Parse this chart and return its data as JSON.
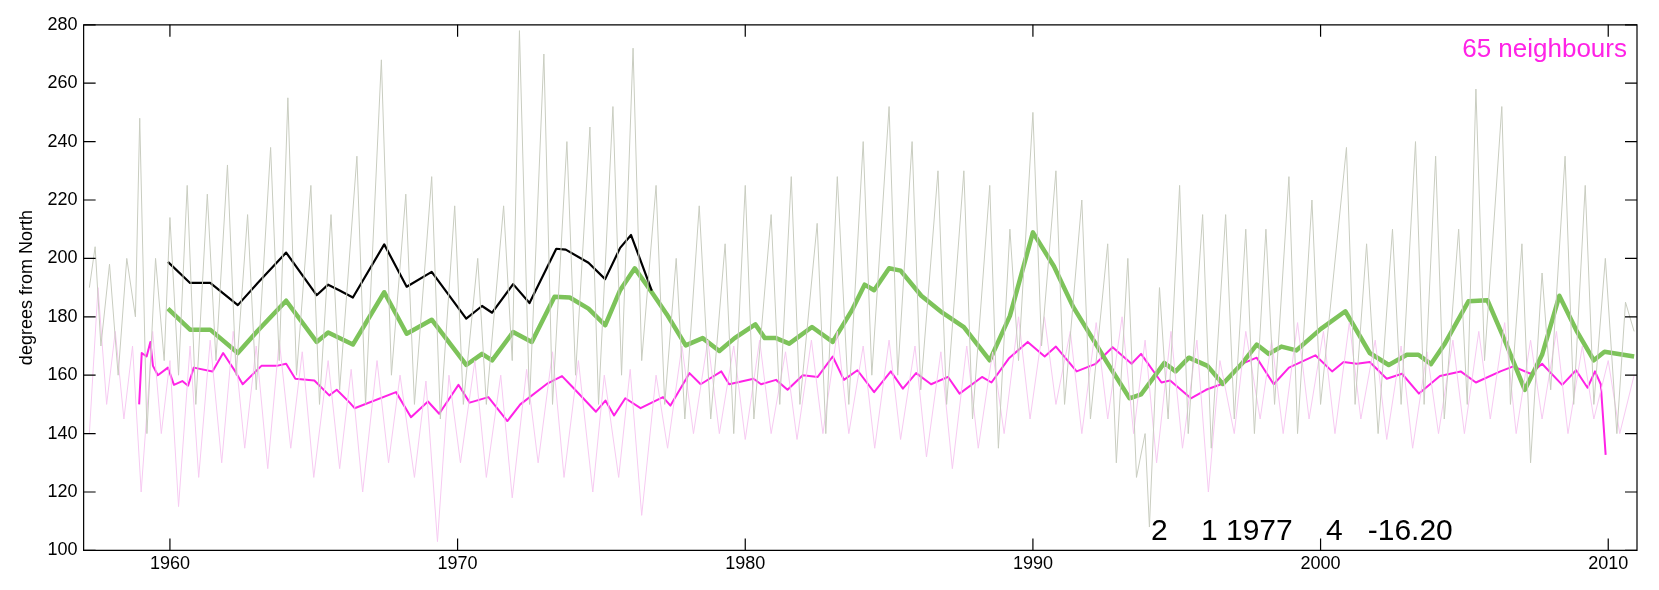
{
  "chart_data": {
    "type": "line",
    "ylabel": "degrees from North",
    "xlim": [
      1957,
      2011
    ],
    "xticks": [
      1960,
      1970,
      1980,
      1990,
      2000,
      2010
    ],
    "ylim": [
      100,
      280
    ],
    "yticks": [
      100,
      120,
      140,
      160,
      180,
      200,
      220,
      240,
      260,
      280
    ],
    "grid": false,
    "legend": false,
    "marker": "none",
    "line_style": "solid",
    "annotations": [
      "65 neighbours",
      "2    1 1977    4   -16.20"
    ],
    "series": [
      {
        "color": "#c9cdc0",
        "x": [
          1957.2,
          1957.4,
          1957.6,
          1957.9,
          1958.2,
          1958.5,
          1958.8,
          1958.95,
          1959.2,
          1959.5,
          1959.8,
          1960.0,
          1960.3,
          1960.6,
          1960.9,
          1961.3,
          1961.6,
          1962.0,
          1962.3,
          1962.7,
          1963.0,
          1963.5,
          1963.8,
          1964.1,
          1964.4,
          1964.9,
          1965.2,
          1965.6,
          1965.9,
          1966.5,
          1966.8,
          1967.35,
          1967.7,
          1968.2,
          1968.5,
          1969.1,
          1969.4,
          1969.9,
          1970.2,
          1970.7,
          1971.0,
          1971.6,
          1971.9,
          1972.15,
          1972.5,
          1973.0,
          1973.3,
          1973.8,
          1974.1,
          1974.6,
          1974.9,
          1975.4,
          1975.7,
          1976.1,
          1976.4,
          1976.9,
          1977.2,
          1977.6,
          1977.9,
          1978.4,
          1978.8,
          1979.3,
          1979.6,
          1980.0,
          1980.3,
          1980.9,
          1981.2,
          1981.6,
          1981.9,
          1982.5,
          1982.8,
          1983.2,
          1983.6,
          1984.1,
          1984.4,
          1985.0,
          1985.3,
          1985.8,
          1986.1,
          1986.7,
          1987.0,
          1987.6,
          1987.9,
          1988.5,
          1988.8,
          1989.2,
          1989.5,
          1990.0,
          1990.3,
          1990.8,
          1991.1,
          1991.7,
          1992.0,
          1992.6,
          1992.9,
          1993.3,
          1993.6,
          1993.9,
          1994.05,
          1994.4,
          1994.7,
          1995.1,
          1995.4,
          1995.9,
          1996.2,
          1996.7,
          1997.0,
          1997.4,
          1997.7,
          1998.1,
          1998.4,
          1998.9,
          1999.2,
          1999.7,
          2000.0,
          2000.9,
          2001.2,
          2001.6,
          2002.0,
          2002.5,
          2002.8,
          2003.3,
          2003.6,
          2004.0,
          2004.3,
          2004.8,
          2005.1,
          2005.4,
          2005.7,
          2006.3,
          2006.6,
          2007.0,
          2007.3,
          2007.7,
          2008.0,
          2008.5,
          2008.8,
          2009.2,
          2009.5,
          2009.9,
          2010.3,
          2010.6,
          2010.9
        ],
        "values": [
          190,
          204,
          170,
          198,
          160,
          200,
          180,
          248,
          140,
          200,
          165,
          214,
          160,
          225,
          150,
          222,
          165,
          232,
          160,
          215,
          155,
          238,
          165,
          255,
          160,
          225,
          150,
          215,
          155,
          235,
          150,
          268,
          160,
          222,
          150,
          228,
          145,
          218,
          150,
          200,
          150,
          218,
          165,
          278,
          150,
          270,
          150,
          240,
          160,
          245,
          150,
          252,
          160,
          272,
          165,
          225,
          150,
          200,
          145,
          218,
          145,
          205,
          140,
          225,
          145,
          215,
          150,
          228,
          150,
          212,
          140,
          228,
          150,
          240,
          160,
          252,
          160,
          240,
          155,
          230,
          150,
          230,
          145,
          225,
          135,
          210,
          165,
          250,
          170,
          230,
          150,
          220,
          145,
          205,
          130,
          200,
          125,
          140,
          108,
          190,
          145,
          225,
          140,
          215,
          135,
          215,
          145,
          210,
          140,
          210,
          150,
          228,
          140,
          220,
          150,
          238,
          150,
          205,
          140,
          210,
          150,
          240,
          150,
          235,
          145,
          210,
          150,
          258,
          165,
          252,
          150,
          205,
          130,
          195,
          155,
          235,
          150,
          225,
          150,
          200,
          140,
          185,
          175
        ]
      },
      {
        "color": "#f7caf2",
        "x": [
          1957.2,
          1957.5,
          1957.8,
          1958.1,
          1958.4,
          1958.7,
          1959.0,
          1959.4,
          1959.7,
          1960.0,
          1960.3,
          1960.7,
          1961.0,
          1961.4,
          1961.8,
          1962.2,
          1962.6,
          1963.0,
          1963.4,
          1963.8,
          1964.2,
          1964.6,
          1965.0,
          1965.5,
          1965.9,
          1966.3,
          1966.7,
          1967.2,
          1967.6,
          1968.0,
          1968.5,
          1968.9,
          1969.3,
          1969.7,
          1970.1,
          1970.6,
          1971.0,
          1971.5,
          1971.9,
          1972.4,
          1972.8,
          1973.3,
          1973.7,
          1974.2,
          1974.7,
          1975.1,
          1975.6,
          1976.0,
          1976.4,
          1976.9,
          1977.3,
          1977.8,
          1978.2,
          1978.7,
          1979.1,
          1979.6,
          1980.0,
          1980.5,
          1980.9,
          1981.4,
          1981.8,
          1982.3,
          1982.7,
          1983.2,
          1983.6,
          1984.1,
          1984.5,
          1985.0,
          1985.4,
          1985.9,
          1986.3,
          1986.8,
          1987.2,
          1987.7,
          1988.1,
          1988.6,
          1989.0,
          1989.5,
          1989.9,
          1990.4,
          1990.8,
          1991.3,
          1991.7,
          1992.2,
          1992.6,
          1993.1,
          1993.5,
          1993.9,
          1994.3,
          1994.8,
          1995.2,
          1995.7,
          1996.1,
          1996.5,
          1997.0,
          1997.4,
          1997.9,
          1998.3,
          1998.7,
          1999.2,
          1999.6,
          2000.1,
          2000.5,
          2001.0,
          2001.4,
          2001.9,
          2002.3,
          2002.8,
          2003.2,
          2003.7,
          2004.1,
          2004.6,
          2005.0,
          2005.5,
          2005.9,
          2006.4,
          2006.8,
          2007.3,
          2007.7,
          2008.2,
          2008.6,
          2009.1,
          2009.5,
          2010.0,
          2010.4,
          2010.9
        ],
        "values": [
          140,
          190,
          150,
          175,
          145,
          170,
          120,
          175,
          140,
          165,
          115,
          170,
          125,
          172,
          130,
          175,
          135,
          170,
          128,
          172,
          135,
          168,
          125,
          165,
          128,
          162,
          120,
          165,
          130,
          160,
          125,
          158,
          103,
          160,
          130,
          165,
          125,
          160,
          118,
          162,
          130,
          168,
          125,
          165,
          120,
          160,
          125,
          162,
          112,
          160,
          135,
          170,
          140,
          172,
          140,
          170,
          138,
          172,
          140,
          168,
          138,
          172,
          140,
          175,
          140,
          170,
          135,
          172,
          138,
          170,
          132,
          168,
          128,
          170,
          135,
          168,
          140,
          180,
          145,
          180,
          150,
          175,
          140,
          178,
          145,
          180,
          140,
          172,
          130,
          175,
          135,
          172,
          120,
          165,
          140,
          175,
          145,
          172,
          140,
          178,
          145,
          175,
          140,
          178,
          145,
          172,
          138,
          170,
          135,
          168,
          140,
          172,
          140,
          175,
          145,
          178,
          140,
          172,
          145,
          175,
          140,
          170,
          145,
          165,
          140,
          160
        ]
      },
      {
        "color": "#000000",
        "x": [
          1959.93,
          1960.7,
          1961.4,
          1962.36,
          1963.05,
          1964.04,
          1965.1,
          1965.5,
          1965.9,
          1966.36,
          1967.45,
          1968.23,
          1969.1,
          1970.3,
          1970.85,
          1971.2,
          1971.93,
          1972.5,
          1973.43,
          1973.76,
          1974.55,
          1975.13,
          1975.65,
          1976.03,
          1976.75
        ],
        "values": [
          198.8,
          191.6,
          191.6,
          184,
          191.6,
          202,
          187.4,
          191,
          189,
          186.6,
          204.8,
          190.3,
          195.4,
          179.4,
          183.7,
          181.4,
          191.2,
          184.7,
          203.3,
          203,
          198.5,
          192.9,
          203.6,
          208,
          189
        ]
      },
      {
        "color": "#7dc35a",
        "x": [
          1959.93,
          1960.7,
          1961.4,
          1962.36,
          1963.05,
          1964.04,
          1965.1,
          1965.5,
          1966.36,
          1967.45,
          1968.23,
          1969.1,
          1970.3,
          1970.85,
          1971.2,
          1971.93,
          1972.58,
          1973.37,
          1973.9,
          1974.55,
          1975.13,
          1975.65,
          1976.16,
          1976.75,
          1977.27,
          1977.93,
          1978.52,
          1979.1,
          1979.63,
          1980.35,
          1980.68,
          1981.07,
          1981.53,
          1982.32,
          1983.04,
          1983.7,
          1984.15,
          1984.48,
          1985.0,
          1985.4,
          1986.12,
          1986.84,
          1987.6,
          1988.5,
          1989.2,
          1990.0,
          1990.73,
          1991.4,
          1992.18,
          1992.57,
          1993.36,
          1993.76,
          1994.57,
          1994.96,
          1995.42,
          1996.07,
          1996.6,
          1997.26,
          1997.78,
          1998.2,
          1998.64,
          1999.16,
          2000.0,
          2000.86,
          2001.71,
          2002.37,
          2003.0,
          2003.4,
          2003.84,
          2004.3,
          2005.14,
          2005.8,
          2006.4,
          2007.1,
          2007.7,
          2008.3,
          2008.9,
          2009.5,
          2009.87,
          2010.9
        ],
        "values": [
          182.8,
          175.6,
          175.6,
          167.6,
          175.2,
          185.5,
          171.4,
          174.6,
          170.5,
          188.4,
          174.2,
          179,
          163.5,
          167.3,
          165.1,
          174.8,
          171.4,
          186.9,
          186.6,
          182.8,
          177.1,
          189.1,
          196.6,
          188.4,
          180.9,
          170.2,
          172.7,
          168.3,
          172.7,
          177.4,
          172.7,
          172.7,
          170.8,
          176.5,
          171.4,
          182.1,
          191,
          189.1,
          196.6,
          195.8,
          187.2,
          181.5,
          176.5,
          165.1,
          180.3,
          208.9,
          197.3,
          183.4,
          170.8,
          164.5,
          152.1,
          153.4,
          164.2,
          161.3,
          166,
          163.2,
          157,
          163.9,
          170.5,
          167.3,
          169.8,
          168.5,
          175.8,
          181.9,
          167.6,
          163.5,
          167,
          167,
          163.8,
          170.5,
          185.3,
          185.7,
          172,
          155,
          167,
          187.2,
          175.2,
          165.1,
          168,
          166.4
        ]
      },
      {
        "color": "#ff22e6",
        "x": [
          1958.93,
          1959.02,
          1959.19,
          1959.32,
          1959.41,
          1959.58,
          1959.93,
          1960.14,
          1960.43,
          1960.63,
          1960.83,
          1961.48,
          1961.85,
          1962.27,
          1962.53,
          1963.18,
          1963.71,
          1964.04,
          1964.36,
          1965.02,
          1965.54,
          1965.8,
          1966.25,
          1966.42,
          1967.86,
          1968.38,
          1968.97,
          1969.36,
          1970.03,
          1970.42,
          1971.07,
          1971.73,
          1972.18,
          1973.1,
          1973.63,
          1974.02,
          1974.81,
          1975.14,
          1975.44,
          1975.83,
          1976.36,
          1977.14,
          1977.4,
          1978.06,
          1978.45,
          1979.17,
          1979.44,
          1980.29,
          1980.55,
          1981.07,
          1981.47,
          1982.0,
          1982.52,
          1983.04,
          1983.43,
          1983.9,
          1984.48,
          1985.06,
          1985.48,
          1985.94,
          1986.46,
          1987.05,
          1987.45,
          1988.23,
          1988.56,
          1989.16,
          1989.82,
          1990.41,
          1990.8,
          1991.52,
          1992.18,
          1992.77,
          1993.43,
          1993.76,
          1994.47,
          1994.77,
          1995.49,
          1996.02,
          1996.54,
          1997.26,
          1997.78,
          1998.37,
          1998.9,
          1999.82,
          2000.4,
          2000.8,
          2001.26,
          2001.71,
          2002.3,
          2002.83,
          2003.42,
          2004.15,
          2004.87,
          2005.4,
          2006.25,
          2006.7,
          2007.3,
          2007.7,
          2008.4,
          2008.88,
          2009.28,
          2009.54,
          2009.74,
          2009.91
        ],
        "values": [
          150,
          167.6,
          166.4,
          171.4,
          163.2,
          160,
          162.6,
          156.7,
          158,
          156.4,
          162.6,
          161.3,
          167.6,
          161.3,
          156.9,
          163.2,
          163.2,
          163.9,
          158.8,
          158.2,
          153.1,
          155,
          150.6,
          148.7,
          154.2,
          145.6,
          151,
          146.8,
          156.7,
          150.6,
          152.5,
          144.3,
          150,
          157,
          159.7,
          155.7,
          147.5,
          151.3,
          146.2,
          152.1,
          148.7,
          152.5,
          149.6,
          160.7,
          156.9,
          161.3,
          156.9,
          158.8,
          156.9,
          158.4,
          155,
          160,
          159.4,
          166.4,
          158.4,
          161.7,
          154.2,
          161.3,
          155.4,
          160.7,
          156.9,
          159.4,
          153.7,
          159.4,
          157.5,
          165.7,
          171.4,
          166.4,
          169.8,
          161.3,
          163.9,
          169.6,
          163.9,
          167.3,
          157.5,
          158.2,
          152.1,
          155,
          156.9,
          163.9,
          166,
          156.9,
          162.6,
          166.8,
          161.3,
          164.5,
          163.9,
          164.5,
          158.8,
          160.5,
          153.7,
          159.7,
          161.3,
          157.5,
          161.3,
          163,
          160.5,
          163.9,
          156.7,
          161.7,
          155.7,
          161.3,
          156.9,
          132.7
        ]
      }
    ]
  }
}
